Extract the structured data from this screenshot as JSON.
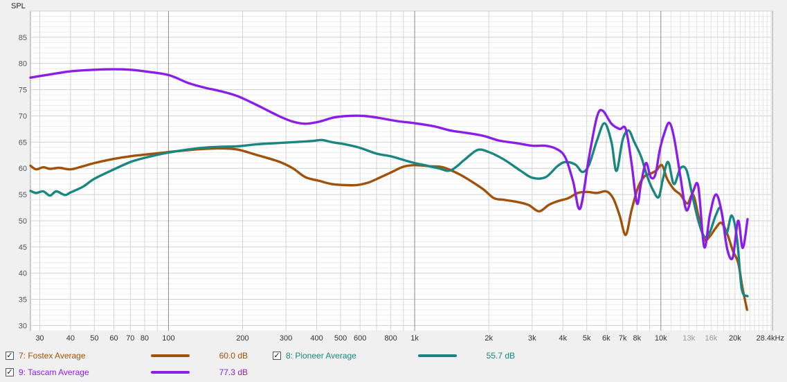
{
  "chart_data": {
    "type": "line",
    "ylabel": "SPL",
    "xscale": "log",
    "xlim": [
      27.5,
      28400
    ],
    "ylim": [
      29,
      90
    ],
    "grid": true,
    "xticks": [
      {
        "v": 30,
        "label": "30"
      },
      {
        "v": 40,
        "label": "40"
      },
      {
        "v": 50,
        "label": "50"
      },
      {
        "v": 60,
        "label": "60"
      },
      {
        "v": 70,
        "label": "70"
      },
      {
        "v": 80,
        "label": "80"
      },
      {
        "v": 100,
        "label": "100"
      },
      {
        "v": 200,
        "label": "200"
      },
      {
        "v": 300,
        "label": "300"
      },
      {
        "v": 400,
        "label": "400"
      },
      {
        "v": 500,
        "label": "500"
      },
      {
        "v": 600,
        "label": "600"
      },
      {
        "v": 800,
        "label": "800"
      },
      {
        "v": 1000,
        "label": "1k"
      },
      {
        "v": 2000,
        "label": "2k"
      },
      {
        "v": 3000,
        "label": "3k"
      },
      {
        "v": 4000,
        "label": "4k"
      },
      {
        "v": 5000,
        "label": "5k"
      },
      {
        "v": 6000,
        "label": "6k"
      },
      {
        "v": 7000,
        "label": "7k"
      },
      {
        "v": 8000,
        "label": "8k"
      },
      {
        "v": 10000,
        "label": "10k"
      },
      {
        "v": 13000,
        "label": "13k"
      },
      {
        "v": 16000,
        "label": "16k"
      },
      {
        "v": 20000,
        "label": "20k"
      },
      {
        "v": 28400,
        "label": "28.4kHz"
      }
    ],
    "yticks": [
      30,
      35,
      40,
      45,
      50,
      55,
      60,
      65,
      70,
      75,
      80,
      85
    ],
    "series": [
      {
        "name": "7: Fostex Average",
        "color": "#a0520a",
        "avg": "60.0 dB",
        "points": [
          [
            27.5,
            60.5
          ],
          [
            29,
            59.8
          ],
          [
            31,
            60.2
          ],
          [
            33,
            59.9
          ],
          [
            36,
            60.1
          ],
          [
            40,
            59.8
          ],
          [
            45,
            60.4
          ],
          [
            50,
            61
          ],
          [
            60,
            61.8
          ],
          [
            70,
            62.3
          ],
          [
            80,
            62.6
          ],
          [
            100,
            63.1
          ],
          [
            130,
            63.6
          ],
          [
            160,
            63.8
          ],
          [
            190,
            63.6
          ],
          [
            230,
            62.5
          ],
          [
            280,
            61.3
          ],
          [
            320,
            60
          ],
          [
            360,
            58.3
          ],
          [
            410,
            57.6
          ],
          [
            460,
            57
          ],
          [
            520,
            56.8
          ],
          [
            580,
            56.8
          ],
          [
            650,
            57.3
          ],
          [
            720,
            58.2
          ],
          [
            800,
            59.2
          ],
          [
            900,
            60.3
          ],
          [
            1000,
            60.6
          ],
          [
            1150,
            60.4
          ],
          [
            1300,
            60.2
          ],
          [
            1500,
            59
          ],
          [
            1700,
            57.5
          ],
          [
            1900,
            56
          ],
          [
            2100,
            54.3
          ],
          [
            2300,
            54
          ],
          [
            2600,
            53.6
          ],
          [
            2900,
            53
          ],
          [
            3200,
            51.8
          ],
          [
            3500,
            53
          ],
          [
            3800,
            53.7
          ],
          [
            4200,
            54.3
          ],
          [
            4600,
            55.3
          ],
          [
            5000,
            55.5
          ],
          [
            5500,
            55.3
          ],
          [
            6000,
            55.6
          ],
          [
            6400,
            54.3
          ],
          [
            6800,
            51
          ],
          [
            7200,
            47.3
          ],
          [
            7600,
            52
          ],
          [
            8100,
            56.5
          ],
          [
            8600,
            58.5
          ],
          [
            9100,
            59
          ],
          [
            9600,
            59.6
          ],
          [
            10100,
            60.6
          ],
          [
            10600,
            58
          ],
          [
            11300,
            56
          ],
          [
            12000,
            55
          ],
          [
            12800,
            53.3
          ],
          [
            13500,
            55
          ],
          [
            14200,
            51
          ],
          [
            15000,
            46.5
          ],
          [
            15800,
            47
          ],
          [
            16700,
            48.6
          ],
          [
            17600,
            49.6
          ],
          [
            18600,
            47.5
          ],
          [
            19600,
            44.3
          ],
          [
            20600,
            42
          ],
          [
            21500,
            37
          ],
          [
            22400,
            33
          ]
        ]
      },
      {
        "name": "8: Pioneer Average",
        "color": "#1a8680",
        "avg": "55.7 dB",
        "points": [
          [
            27.5,
            55.7
          ],
          [
            29,
            55.3
          ],
          [
            31,
            55.6
          ],
          [
            33,
            54.8
          ],
          [
            35,
            55.6
          ],
          [
            38,
            54.9
          ],
          [
            40,
            55.4
          ],
          [
            45,
            56.5
          ],
          [
            50,
            58
          ],
          [
            60,
            59.8
          ],
          [
            70,
            61.2
          ],
          [
            80,
            62
          ],
          [
            100,
            63
          ],
          [
            130,
            63.8
          ],
          [
            160,
            64.1
          ],
          [
            190,
            64.2
          ],
          [
            230,
            64.6
          ],
          [
            300,
            64.9
          ],
          [
            380,
            65.2
          ],
          [
            420,
            65.4
          ],
          [
            460,
            65
          ],
          [
            520,
            64.6
          ],
          [
            600,
            63.9
          ],
          [
            700,
            62.8
          ],
          [
            800,
            62.3
          ],
          [
            900,
            61.6
          ],
          [
            1000,
            61
          ],
          [
            1100,
            60.6
          ],
          [
            1250,
            60
          ],
          [
            1400,
            59.6
          ],
          [
            1600,
            61.7
          ],
          [
            1800,
            63.5
          ],
          [
            2000,
            63.1
          ],
          [
            2300,
            61.7
          ],
          [
            2700,
            59.5
          ],
          [
            3000,
            58.2
          ],
          [
            3400,
            58.3
          ],
          [
            3800,
            60.4
          ],
          [
            4100,
            61.2
          ],
          [
            4500,
            60.7
          ],
          [
            4800,
            59.3
          ],
          [
            5100,
            60.6
          ],
          [
            5500,
            65.3
          ],
          [
            5900,
            68.6
          ],
          [
            6300,
            65
          ],
          [
            6600,
            59.5
          ],
          [
            7000,
            65.5
          ],
          [
            7400,
            67.2
          ],
          [
            7800,
            65
          ],
          [
            8300,
            62.3
          ],
          [
            8800,
            58.5
          ],
          [
            9300,
            55.8
          ],
          [
            9800,
            54.5
          ],
          [
            10200,
            58
          ],
          [
            10700,
            61.2
          ],
          [
            11300,
            57
          ],
          [
            12000,
            60
          ],
          [
            12700,
            59.7
          ],
          [
            13400,
            55
          ],
          [
            14200,
            50
          ],
          [
            15000,
            47
          ],
          [
            15800,
            47.8
          ],
          [
            16700,
            51
          ],
          [
            17500,
            52.3
          ],
          [
            18400,
            47.5
          ],
          [
            19400,
            51
          ],
          [
            20400,
            46.5
          ],
          [
            21300,
            37
          ],
          [
            22500,
            35.6
          ]
        ]
      },
      {
        "name": "9: Tascam Average",
        "color": "#8a1ee8",
        "avg": "77.3 dB",
        "points": [
          [
            27.5,
            77.3
          ],
          [
            30,
            77.6
          ],
          [
            35,
            78.1
          ],
          [
            40,
            78.5
          ],
          [
            50,
            78.8
          ],
          [
            60,
            78.9
          ],
          [
            70,
            78.8
          ],
          [
            80,
            78.5
          ],
          [
            100,
            77.8
          ],
          [
            120,
            76.3
          ],
          [
            140,
            75.4
          ],
          [
            160,
            74.8
          ],
          [
            190,
            73.8
          ],
          [
            230,
            72
          ],
          [
            280,
            70
          ],
          [
            320,
            68.9
          ],
          [
            360,
            68.5
          ],
          [
            410,
            68.9
          ],
          [
            470,
            69.7
          ],
          [
            540,
            70
          ],
          [
            620,
            70
          ],
          [
            720,
            69.6
          ],
          [
            850,
            69
          ],
          [
            1000,
            68.6
          ],
          [
            1200,
            68
          ],
          [
            1400,
            67.2
          ],
          [
            1600,
            66.8
          ],
          [
            1900,
            66.2
          ],
          [
            2200,
            65.3
          ],
          [
            2600,
            64.8
          ],
          [
            3000,
            64.3
          ],
          [
            3400,
            64.3
          ],
          [
            3800,
            63.6
          ],
          [
            4100,
            62
          ],
          [
            4400,
            57.5
          ],
          [
            4700,
            52.3
          ],
          [
            5100,
            62
          ],
          [
            5500,
            69.8
          ],
          [
            5800,
            71
          ],
          [
            6300,
            68.5
          ],
          [
            6800,
            67.5
          ],
          [
            7200,
            67.5
          ],
          [
            7600,
            61
          ],
          [
            8000,
            53.3
          ],
          [
            8300,
            57
          ],
          [
            8700,
            61
          ],
          [
            9100,
            58.3
          ],
          [
            9500,
            58.8
          ],
          [
            9900,
            63.5
          ],
          [
            10300,
            66.5
          ],
          [
            10800,
            68.7
          ],
          [
            11300,
            66
          ],
          [
            12000,
            58.5
          ],
          [
            12700,
            52
          ],
          [
            13500,
            55.5
          ],
          [
            14200,
            56.5
          ],
          [
            15000,
            45
          ],
          [
            15800,
            51
          ],
          [
            16700,
            55
          ],
          [
            17600,
            52
          ],
          [
            18600,
            44.6
          ],
          [
            19600,
            43
          ],
          [
            20600,
            50
          ],
          [
            21500,
            44.8
          ],
          [
            22500,
            50.3
          ]
        ]
      }
    ]
  }
}
